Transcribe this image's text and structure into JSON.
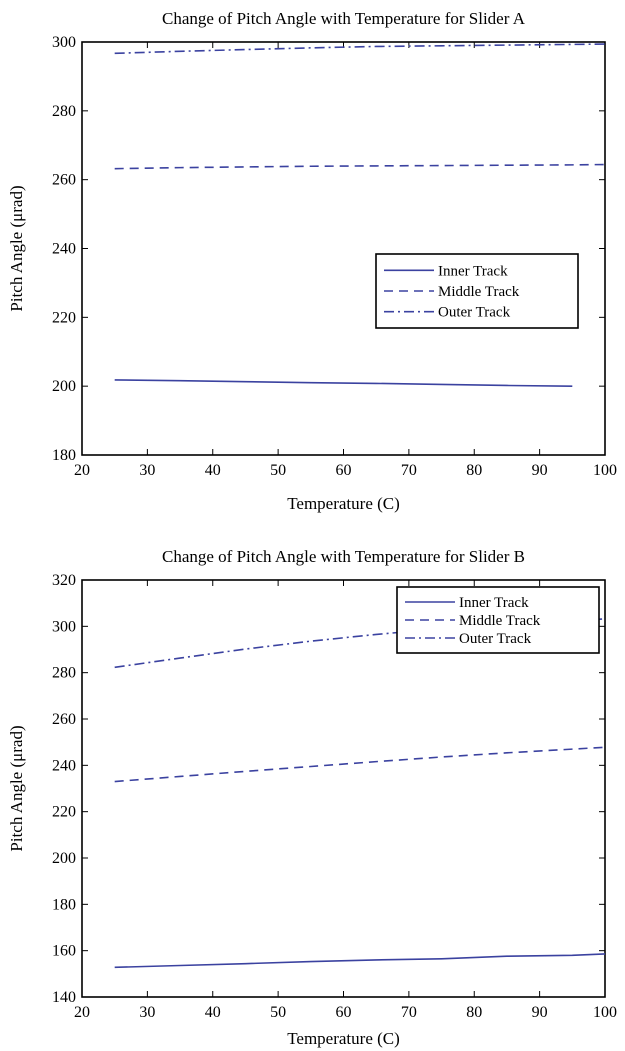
{
  "chart_data": [
    {
      "type": "line",
      "title": "Change of Pitch Angle with Temperature for Slider A",
      "xlabel": "Temperature (C)",
      "ylabel": "Pitch Angle (μrad)",
      "xlim": [
        20,
        100
      ],
      "ylim": [
        180,
        300
      ],
      "xticks": [
        20,
        30,
        40,
        50,
        60,
        70,
        80,
        90,
        100
      ],
      "yticks": [
        180,
        200,
        220,
        240,
        260,
        280,
        300
      ],
      "legend_position": "center-right",
      "grid": false,
      "color": "#3b42a0",
      "series": [
        {
          "name": "Inner Track",
          "style": "solid",
          "x": [
            25,
            35,
            45,
            55,
            65,
            75,
            85,
            95
          ],
          "y": [
            201.8,
            201.6,
            201.3,
            201.0,
            200.8,
            200.5,
            200.2,
            200.0
          ]
        },
        {
          "name": "Middle Track",
          "style": "dashed",
          "x": [
            25,
            35,
            45,
            55,
            65,
            75,
            85,
            95,
            100
          ],
          "y": [
            263.2,
            263.5,
            263.7,
            263.9,
            264.0,
            264.1,
            264.2,
            264.3,
            264.4
          ]
        },
        {
          "name": "Outer Track",
          "style": "dashdot",
          "x": [
            25,
            35,
            45,
            55,
            65,
            75,
            85,
            95,
            100
          ],
          "y": [
            296.7,
            297.3,
            297.8,
            298.3,
            298.7,
            298.9,
            299.1,
            299.3,
            299.4
          ]
        }
      ]
    },
    {
      "type": "line",
      "title": "Change of Pitch Angle with Temperature for Slider B",
      "xlabel": "Temperature (C)",
      "ylabel": "Pitch Angle (μrad)",
      "xlim": [
        20,
        100
      ],
      "ylim": [
        140,
        320
      ],
      "xticks": [
        20,
        30,
        40,
        50,
        60,
        70,
        80,
        90,
        100
      ],
      "yticks": [
        140,
        160,
        180,
        200,
        220,
        240,
        260,
        280,
        300,
        320
      ],
      "legend_position": "top-right",
      "grid": false,
      "color": "#3b42a0",
      "series": [
        {
          "name": "Inner Track",
          "style": "solid",
          "x": [
            25,
            35,
            45,
            55,
            65,
            75,
            85,
            95,
            100
          ],
          "y": [
            152.8,
            153.6,
            154.4,
            155.3,
            156.0,
            156.5,
            157.6,
            158.0,
            158.6
          ]
        },
        {
          "name": "Middle Track",
          "style": "dashed",
          "x": [
            25,
            35,
            45,
            55,
            65,
            75,
            85,
            95,
            100
          ],
          "y": [
            233.0,
            235.2,
            237.4,
            239.5,
            241.6,
            243.6,
            245.4,
            247.0,
            247.8
          ]
        },
        {
          "name": "Outer Track",
          "style": "dashdot",
          "x": [
            25,
            35,
            45,
            55,
            65,
            75,
            85,
            95,
            100
          ],
          "y": [
            282.3,
            286.3,
            290.2,
            293.6,
            296.5,
            299.0,
            301.0,
            302.5,
            303.2
          ]
        }
      ]
    }
  ]
}
